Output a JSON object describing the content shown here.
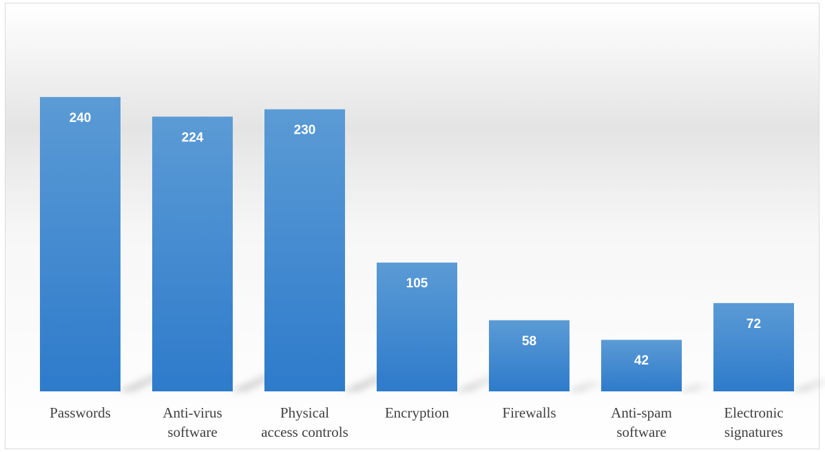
{
  "chart_data": {
    "type": "bar",
    "title": "",
    "xlabel": "",
    "ylabel": "",
    "categories": [
      "Passwords",
      "Anti-virus software",
      "Physical access controls",
      "Encryption",
      "Firewalls",
      "Anti-spam software",
      "Electronic signatures"
    ],
    "category_lines": [
      [
        "Passwords"
      ],
      [
        "Anti-virus",
        "software"
      ],
      [
        "Physical",
        "access controls"
      ],
      [
        "Encryption"
      ],
      [
        "Firewalls"
      ],
      [
        "Anti-spam",
        "software"
      ],
      [
        "Electronic",
        "signatures"
      ]
    ],
    "values": [
      240,
      224,
      230,
      105,
      58,
      42,
      72
    ],
    "data_labels": [
      "240",
      "224",
      "230",
      "105",
      "58",
      "42",
      "72"
    ],
    "ylim": [
      0,
      240
    ],
    "grid": false,
    "legend": "none",
    "colors": {
      "bar_top": "#5b9bd5",
      "bar_bottom": "#2e7bcb",
      "label": "#404040",
      "data_label": "#ffffff"
    }
  }
}
